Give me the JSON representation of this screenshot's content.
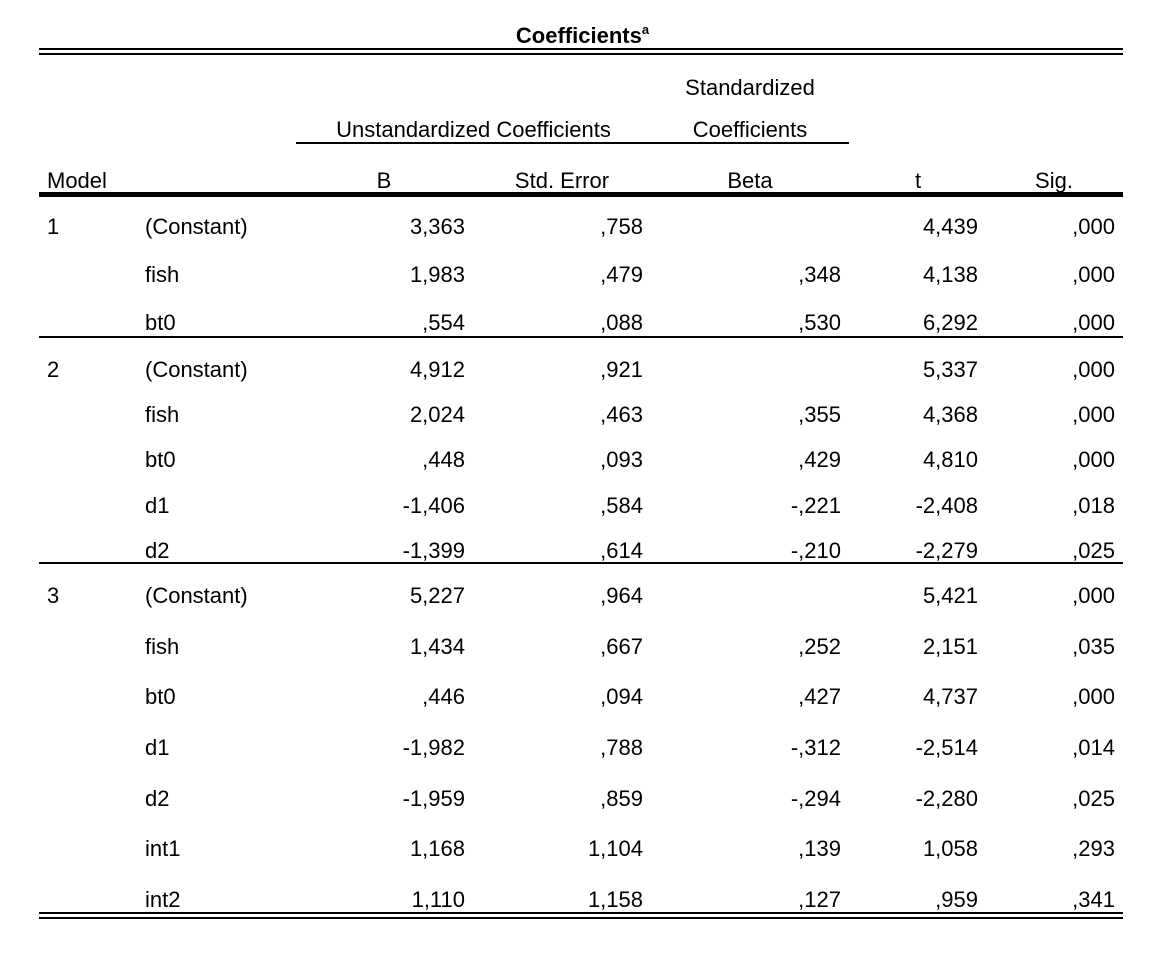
{
  "table": {
    "title": "Coefficients",
    "title_superscript": "a",
    "group_headers": {
      "unstandardized": "Unstandardized Coefficients",
      "standardized_line1": "Standardized",
      "standardized_line2": "Coefficients"
    },
    "columns": {
      "model": "Model",
      "b": "B",
      "std_error": "Std. Error",
      "beta": "Beta",
      "t": "t",
      "sig": "Sig."
    },
    "rows": [
      {
        "model": "1",
        "var": "(Constant)",
        "b": "3,363",
        "se": ",758",
        "beta": "",
        "t": "4,439",
        "sig": ",000"
      },
      {
        "model": "",
        "var": "fish",
        "b": "1,983",
        "se": ",479",
        "beta": ",348",
        "t": "4,138",
        "sig": ",000"
      },
      {
        "model": "",
        "var": "bt0",
        "b": ",554",
        "se": ",088",
        "beta": ",530",
        "t": "6,292",
        "sig": ",000"
      },
      {
        "model": "2",
        "var": "(Constant)",
        "b": "4,912",
        "se": ",921",
        "beta": "",
        "t": "5,337",
        "sig": ",000"
      },
      {
        "model": "",
        "var": "fish",
        "b": "2,024",
        "se": ",463",
        "beta": ",355",
        "t": "4,368",
        "sig": ",000"
      },
      {
        "model": "",
        "var": "bt0",
        "b": ",448",
        "se": ",093",
        "beta": ",429",
        "t": "4,810",
        "sig": ",000"
      },
      {
        "model": "",
        "var": "d1",
        "b": "-1,406",
        "se": ",584",
        "beta": "-,221",
        "t": "-2,408",
        "sig": ",018"
      },
      {
        "model": "",
        "var": "d2",
        "b": "-1,399",
        "se": ",614",
        "beta": "-,210",
        "t": "-2,279",
        "sig": ",025"
      },
      {
        "model": "3",
        "var": "(Constant)",
        "b": "5,227",
        "se": ",964",
        "beta": "",
        "t": "5,421",
        "sig": ",000"
      },
      {
        "model": "",
        "var": "fish",
        "b": "1,434",
        "se": ",667",
        "beta": ",252",
        "t": "2,151",
        "sig": ",035"
      },
      {
        "model": "",
        "var": "bt0",
        "b": ",446",
        "se": ",094",
        "beta": ",427",
        "t": "4,737",
        "sig": ",000"
      },
      {
        "model": "",
        "var": "d1",
        "b": "-1,982",
        "se": ",788",
        "beta": "-,312",
        "t": "-2,514",
        "sig": ",014"
      },
      {
        "model": "",
        "var": "d2",
        "b": "-1,959",
        "se": ",859",
        "beta": "-,294",
        "t": "-2,280",
        "sig": ",025"
      },
      {
        "model": "",
        "var": "int1",
        "b": "1,168",
        "se": "1,104",
        "beta": ",139",
        "t": "1,058",
        "sig": ",293"
      },
      {
        "model": "",
        "var": "int2",
        "b": "1,110",
        "se": "1,158",
        "beta": ",127",
        "t": ",959",
        "sig": ",341"
      }
    ]
  }
}
